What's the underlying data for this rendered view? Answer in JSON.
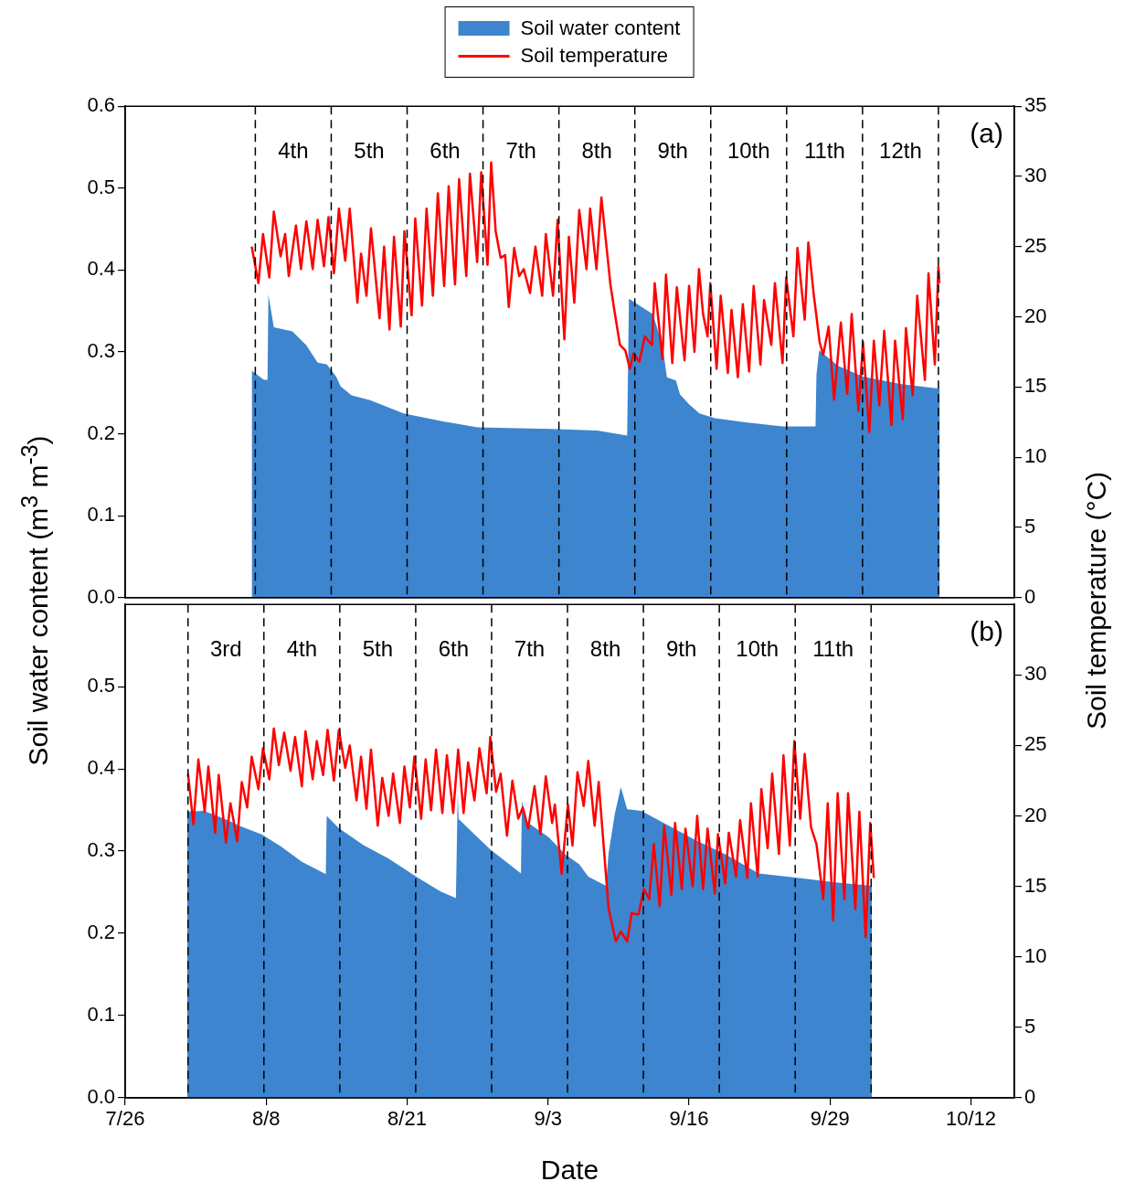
{
  "chart_data": [
    {
      "type": "area",
      "ylabel": "Soil water content (m$^{3}$ m$^{-3}$)",
      "y2label": "Soil temperature (°C)",
      "legend": "top",
      "tick_labels": "y",
      "xlim": [
        "--07-26",
        "--10-16"
      ],
      "ylim": [
        0,
        0.6
      ],
      "yticks": [
        {
          "value": 0,
          "label": "0.0"
        },
        {
          "value": 0.1,
          "label": "0.1"
        },
        {
          "value": 0.2,
          "label": "0.2"
        },
        {
          "value": 0.3,
          "label": "0.3"
        },
        {
          "value": 0.4,
          "label": "0.4"
        },
        {
          "value": 0.5,
          "label": "0.5"
        },
        {
          "value": 0.6,
          "label": "0.6"
        }
      ],
      "y2lim": [
        0,
        35
      ],
      "y2ticks": [
        0,
        5,
        10,
        15,
        20,
        25,
        30,
        35
      ],
      "series": [
        {
          "name": "Soil water content",
          "color": "#3d85cf",
          "x": [
            "--08-06T16:00",
            "--08-07T19:00",
            "--08-08T03:00",
            "--08-08T05:00",
            "--08-08T17:00",
            "--08-10T10:00",
            "--08-11T17:00",
            "--08-12T18:00",
            "--08-13T14:00",
            "--08-14T11:00",
            "--08-14T21:00",
            "--08-15T21:00",
            "--08-17T14:00",
            "--08-20T16:00",
            "--08-24T10:00",
            "--08-27T12:00",
            "--09-03T07:00",
            "--09-07T13:00",
            "--09-10T07:00",
            "--09-10T11:00",
            "--09-12T16:00",
            "--09-13T13:00",
            "--09-13T23:00",
            "--09-14T19:00",
            "--09-15T04:00",
            "--09-16T00:00",
            "--09-16T23:00",
            "--09-18T09:00",
            "--09-21T05:00",
            "--09-24T15:00",
            "--09-27T16:00",
            "--09-27T18:00",
            "--09-28T00:00",
            "--09-29T18:00",
            "--10-02T01:00",
            "--10-05T11:00",
            "--10-09T03:00"
          ],
          "values": [
            0.277,
            0.266,
            0.266,
            0.37,
            0.33,
            0.325,
            0.308,
            0.287,
            0.285,
            0.27,
            0.258,
            0.247,
            0.241,
            0.225,
            0.215,
            0.208,
            0.206,
            0.204,
            0.198,
            0.365,
            0.346,
            0.309,
            0.269,
            0.265,
            0.248,
            0.236,
            0.225,
            0.219,
            0.214,
            0.209,
            0.209,
            0.272,
            0.302,
            0.283,
            0.27,
            0.261,
            0.255
          ]
        },
        {
          "name": "Soil temperature",
          "type": "line",
          "axis": "y2",
          "color": "#ff0000",
          "x": [
            "--08-06T16:00",
            "--08-07T07:00",
            "--08-07T17:00",
            "--08-08T07:00",
            "--08-08T17:00",
            "--08-09T08:00",
            "--08-09T18:00",
            "--08-10T02:00",
            "--08-10T18:00",
            "--08-11T05:00",
            "--08-11T17:00",
            "--08-12T07:00",
            "--08-12T18:00",
            "--08-13T08:00",
            "--08-13T18:00",
            "--08-14T06:00",
            "--08-14T17:00",
            "--08-15T07:00",
            "--08-15T17:00",
            "--08-16T10:00",
            "--08-16T18:00",
            "--08-17T06:00",
            "--08-17T16:00",
            "--08-18T11:00",
            "--08-18T21:00",
            "--08-19T09:00",
            "--08-19T19:00",
            "--08-20T10:00",
            "--08-20T18:00",
            "--08-21T10:00",
            "--08-21T18:00",
            "--08-22T09:00",
            "--08-22T19:00",
            "--08-23T09:00",
            "--08-23T20:00",
            "--08-24T10:00",
            "--08-24T20:00",
            "--08-25T10:00",
            "--08-25T19:00",
            "--08-26T11:00",
            "--08-26T19:00",
            "--08-27T11:00",
            "--08-27T20:00",
            "--08-28T10:00",
            "--08-28T18:00",
            "--08-29T04:00",
            "--08-29T15:00",
            "--08-30T01:00",
            "--08-30T09:00",
            "--08-30T21:00",
            "--08-31T08:00",
            "--08-31T18:00",
            "--09-01T08:00",
            "--09-01T20:00",
            "--09-02T11:00",
            "--09-02T19:00",
            "--09-03T11:00",
            "--09-03T21:00",
            "--09-04T12:00",
            "--09-04T22:00",
            "--09-05T10:00",
            "--09-05T21:00",
            "--09-06T13:00",
            "--09-06T21:00",
            "--09-07T11:00",
            "--09-07T22:00",
            "--09-08T18:00",
            "--09-09T04:00",
            "--09-09T15:00",
            "--09-10T03:00",
            "--09-10T13:00",
            "--09-10T21:00",
            "--09-11T10:00",
            "--09-11T22:00",
            "--09-12T14:00",
            "--09-12T20:00",
            "--09-13T13:00",
            "--09-13T21:00",
            "--09-14T11:00",
            "--09-14T21:00",
            "--09-15T14:00",
            "--09-16T00:00",
            "--09-16T12:00",
            "--09-16T22:00",
            "--09-17T07:00",
            "--09-17T17:00",
            "--09-17T23:00",
            "--09-18T13:00",
            "--09-18T22:00",
            "--09-19T14:00",
            "--09-19T22:00",
            "--09-20T12:00",
            "--09-20T23:00",
            "--09-21T13:00",
            "--09-21T23:00",
            "--09-22T14:00",
            "--09-22T22:00",
            "--09-23T14:00",
            "--09-23T22:00",
            "--09-24T15:00",
            "--09-24T23:00",
            "--09-25T15:00",
            "--09-26T00:00",
            "--09-26T16:00",
            "--09-27T00:00",
            "--09-27T12:00",
            "--09-28T01:00",
            "--09-28T09:00",
            "--09-28T21:00",
            "--09-29T09:00",
            "--09-30T00:00",
            "--09-30T14:00",
            "--10-01T00:00",
            "--10-01T15:00",
            "--10-02T01:00",
            "--10-02T15:00",
            "--10-03T01:00",
            "--10-03T13:00",
            "--10-04T00:00",
            "--10-04T16:00",
            "--10-05T00:00",
            "--10-05T17:00",
            "--10-06T00:00",
            "--10-06T15:00",
            "--10-07T01:00",
            "--10-07T18:00",
            "--10-08T02:00",
            "--10-08T16:00",
            "--10-09T00:00",
            "--10-09T02:00"
          ],
          "values": [
            25.0,
            22.4,
            25.9,
            22.8,
            27.5,
            24.3,
            25.9,
            22.9,
            26.5,
            23.4,
            26.8,
            23.4,
            26.9,
            23.6,
            27.1,
            23.1,
            27.7,
            24.0,
            27.7,
            21.0,
            24.5,
            21.5,
            26.3,
            19.9,
            25.0,
            19.1,
            25.7,
            19.3,
            26.1,
            20.1,
            27.0,
            20.8,
            27.7,
            21.5,
            28.8,
            22.2,
            29.3,
            22.3,
            29.8,
            22.9,
            30.2,
            23.9,
            30.3,
            23.7,
            31.0,
            26.1,
            24.2,
            24.4,
            20.7,
            24.9,
            22.9,
            23.4,
            21.7,
            25.0,
            21.5,
            25.9,
            21.5,
            26.9,
            18.4,
            25.7,
            21.0,
            27.6,
            23.4,
            27.7,
            23.4,
            28.5,
            22.3,
            20.2,
            18.0,
            17.6,
            16.3,
            17.4,
            16.8,
            18.6,
            18.0,
            22.4,
            17.0,
            23.0,
            16.7,
            22.1,
            16.9,
            22.2,
            17.5,
            23.4,
            20.2,
            18.6,
            22.4,
            16.3,
            21.5,
            16.0,
            20.5,
            15.7,
            20.9,
            16.1,
            22.2,
            16.6,
            21.2,
            18.0,
            22.4,
            16.7,
            22.8,
            18.6,
            24.9,
            19.8,
            25.3,
            21.6,
            18.2,
            17.3,
            19.3,
            14.1,
            19.6,
            14.5,
            20.2,
            13.3,
            18.2,
            11.8,
            18.3,
            13.7,
            19.0,
            12.3,
            18.3,
            12.7,
            19.2,
            14.4,
            21.5,
            15.5,
            23.1,
            16.6,
            23.6,
            22.4
          ]
        }
      ],
      "ref_lines": [
        {
          "axis": "x",
          "value": "--08-07",
          "line_style": "dashed"
        },
        {
          "axis": "x",
          "value": "--08-14",
          "line_style": "dashed"
        },
        {
          "axis": "x",
          "value": "--08-21",
          "line_style": "dashed"
        },
        {
          "axis": "x",
          "value": "--08-28",
          "line_style": "dashed"
        },
        {
          "axis": "x",
          "value": "--09-04",
          "line_style": "dashed"
        },
        {
          "axis": "x",
          "value": "--09-11",
          "line_style": "dashed"
        },
        {
          "axis": "x",
          "value": "--09-18",
          "line_style": "dashed"
        },
        {
          "axis": "x",
          "value": "--09-25",
          "line_style": "dashed"
        },
        {
          "axis": "x",
          "value": "--10-02",
          "line_style": "dashed"
        },
        {
          "axis": "x",
          "value": "--10-09",
          "line_style": "dashed"
        }
      ],
      "annotations": [
        "(a)",
        "4th",
        "5th",
        "6th",
        "7th",
        "8th",
        "9th",
        "10th",
        "11th",
        "12th"
      ]
    },
    {
      "type": "area",
      "xlabel": "Date",
      "xlim": [
        "--07-26",
        "--10-16"
      ],
      "xticks": [
        {
          "value": "--07-26",
          "label": "7/26"
        },
        {
          "value": "--08-08",
          "label": "8/8"
        },
        {
          "value": "--08-21",
          "label": "8/21"
        },
        {
          "value": "--09-03",
          "label": "9/3"
        },
        {
          "value": "--09-16",
          "label": "9/16"
        },
        {
          "value": "--09-29",
          "label": "9/29"
        },
        {
          "value": "--10-12",
          "label": "10/12"
        }
      ],
      "ylim": [
        0,
        0.6
      ],
      "yticks": [
        {
          "value": 0,
          "label": "0.0"
        },
        {
          "value": 0.1,
          "label": "0.1"
        },
        {
          "value": 0.2,
          "label": "0.2"
        },
        {
          "value": 0.3,
          "label": "0.3"
        },
        {
          "value": 0.4,
          "label": "0.4"
        },
        {
          "value": 0.5,
          "label": "0.5"
        }
      ],
      "y2lim": [
        0,
        35
      ],
      "y2ticks": [
        0,
        5,
        10,
        15,
        20,
        25,
        30
      ],
      "series": [
        {
          "color": "#3d85cf",
          "x": [
            "--07-31T17:00",
            "--08-02T06:00",
            "--08-04T05:00",
            "--08-05T16:00",
            "--08-07T15:00",
            "--08-09T08:00",
            "--08-11T07:00",
            "--08-13T12:00",
            "--08-13T14:00",
            "--08-14T17:00",
            "--08-17T00:00",
            "--08-19T07:00",
            "--08-21T20:00",
            "--08-24T02:00",
            "--08-25T12:00",
            "--08-25T16:00",
            "--08-25T18:00",
            "--08-28T16:00",
            "--08-31T12:00",
            "--08-31T14:00",
            "--09-01T02:00",
            "--09-03T01:00",
            "--09-04T14:00",
            "--09-05T21:00",
            "--09-06T17:00",
            "--09-08T08:00",
            "--09-08T14:00",
            "--09-09T04:00",
            "--09-09T17:00",
            "--09-10T07:00",
            "--09-11T14:00",
            "--09-13T13:00",
            "--09-16T16:00",
            "--09-19T12:00",
            "--09-22T10:00",
            "--09-25T19:00",
            "--09-29T11:00",
            "--10-02T21:00"
          ],
          "values": [
            0.348,
            0.349,
            0.339,
            0.33,
            0.32,
            0.306,
            0.287,
            0.272,
            0.343,
            0.328,
            0.307,
            0.291,
            0.269,
            0.251,
            0.243,
            0.37,
            0.339,
            0.302,
            0.273,
            0.361,
            0.335,
            0.317,
            0.296,
            0.284,
            0.269,
            0.258,
            0.298,
            0.346,
            0.378,
            0.351,
            0.349,
            0.335,
            0.313,
            0.295,
            0.273,
            0.268,
            0.262,
            0.258
          ]
        },
        {
          "type": "line",
          "axis": "y2",
          "color": "#ff0000",
          "x": [
            "--07-31T19:00",
            "--08-01T07:00",
            "--08-01T18:00",
            "--08-02T08:00",
            "--08-02T16:00",
            "--08-03T07:00",
            "--08-03T15:00",
            "--08-04T07:00",
            "--08-04T17:00",
            "--08-05T08:00",
            "--08-05T18:00",
            "--08-06T06:00",
            "--08-06T16:00",
            "--08-07T07:00",
            "--08-07T17:00",
            "--08-08T07:00",
            "--08-08T17:00",
            "--08-09T04:00",
            "--08-09T16:00",
            "--08-10T06:00",
            "--08-10T16:00",
            "--08-11T07:00",
            "--08-11T15:00",
            "--08-12T07:00",
            "--08-12T16:00",
            "--08-13T06:00",
            "--08-13T16:00",
            "--08-14T06:00",
            "--08-14T17:00",
            "--08-15T07:00",
            "--08-15T17:00",
            "--08-16T08:00",
            "--08-16T18:00",
            "--08-17T06:00",
            "--08-17T16:00",
            "--08-18T07:00",
            "--08-18T17:00",
            "--08-19T07:00",
            "--08-19T17:00",
            "--08-20T08:00",
            "--08-20T18:00",
            "--08-21T06:00",
            "--08-21T16:00",
            "--08-22T07:00",
            "--08-22T17:00",
            "--08-23T05:00",
            "--08-23T16:00",
            "--08-24T06:00",
            "--08-24T16:00",
            "--08-25T06:00",
            "--08-25T17:00",
            "--08-26T05:00",
            "--08-26T15:00",
            "--08-27T05:00",
            "--08-27T16:00",
            "--08-28T08:00",
            "--08-28T16:00",
            "--08-29T05:00",
            "--08-29T15:00",
            "--08-30T05:00",
            "--08-30T17:00",
            "--08-31T06:00",
            "--08-31T16:00",
            "--09-01T04:00",
            "--09-01T18:00",
            "--09-02T07:00",
            "--09-02T19:00",
            "--09-03T09:00",
            "--09-03T15:00",
            "--09-04T06:00",
            "--09-04T20:00",
            "--09-05T06:00",
            "--09-05T17:00",
            "--09-06T07:00",
            "--09-06T17:00",
            "--09-07T07:00",
            "--09-07T16:00",
            "--09-08T14:00",
            "--09-09T06:00",
            "--09-09T17:00",
            "--09-10T07:00",
            "--09-10T17:00",
            "--09-11T08:00",
            "--09-11T20:00",
            "--09-12T08:00",
            "--09-12T18:00",
            "--09-13T07:00",
            "--09-13T17:00",
            "--09-14T09:00",
            "--09-14T17:00",
            "--09-15T08:00",
            "--09-15T16:00",
            "--09-16T08:00",
            "--09-16T18:00",
            "--09-17T07:00",
            "--09-17T17:00",
            "--09-18T09:00",
            "--09-18T16:00",
            "--09-19T08:00",
            "--09-19T16:00",
            "--09-20T08:00",
            "--09-20T17:00",
            "--09-21T09:00",
            "--09-21T17:00",
            "--09-22T08:00",
            "--09-22T16:00",
            "--09-23T06:00",
            "--09-23T16:00",
            "--09-24T07:00",
            "--09-24T17:00",
            "--09-25T07:00",
            "--09-25T17:00",
            "--09-26T06:00",
            "--09-26T16:00",
            "--09-27T06:00",
            "--09-27T18:00",
            "--09-28T09:00",
            "--09-28T19:00",
            "--09-29T07:00",
            "--09-29T17:00",
            "--09-30T08:00",
            "--09-30T16:00",
            "--10-01T08:00",
            "--10-01T17:00",
            "--10-02T07:00",
            "--10-02T17:00",
            "--10-03T01:00"
          ],
          "values": [
            23.0,
            19.4,
            24.0,
            20.3,
            23.5,
            18.8,
            22.9,
            18.1,
            20.9,
            18.2,
            22.4,
            20.6,
            24.2,
            21.9,
            24.8,
            22.6,
            26.2,
            23.6,
            25.9,
            23.2,
            25.6,
            22.1,
            26.0,
            22.6,
            25.3,
            22.9,
            26.1,
            22.5,
            26.1,
            23.4,
            25.0,
            21.1,
            24.2,
            20.5,
            24.7,
            19.3,
            22.7,
            20.0,
            23.0,
            19.5,
            23.5,
            20.6,
            24.2,
            19.8,
            24.0,
            20.4,
            24.7,
            20.2,
            24.3,
            20.2,
            24.7,
            20.2,
            23.8,
            21.1,
            24.8,
            21.6,
            25.6,
            21.7,
            23.0,
            18.6,
            22.5,
            19.8,
            20.6,
            19.1,
            22.1,
            18.7,
            22.8,
            19.5,
            20.8,
            15.9,
            20.8,
            17.9,
            23.1,
            20.7,
            23.9,
            19.3,
            22.4,
            13.4,
            11.1,
            11.8,
            11.1,
            13.1,
            13.0,
            14.8,
            14.1,
            18.0,
            13.6,
            19.3,
            14.4,
            19.5,
            14.8,
            19.1,
            15.0,
            20.0,
            14.8,
            19.1,
            14.5,
            18.7,
            15.2,
            18.8,
            15.7,
            19.7,
            15.6,
            20.9,
            15.7,
            21.9,
            17.7,
            23.0,
            17.3,
            24.3,
            17.9,
            25.3,
            19.8,
            24.4,
            19.2,
            18.0,
            14.1,
            20.9,
            12.6,
            21.6,
            14.1,
            21.6,
            13.4,
            20.3,
            11.4,
            19.5,
            15.6
          ]
        }
      ],
      "ref_lines": [
        {
          "axis": "x",
          "value": "--07-31T19:00",
          "line_style": "dashed"
        },
        {
          "axis": "x",
          "value": "--08-07T19:00",
          "line_style": "dashed"
        },
        {
          "axis": "x",
          "value": "--08-14T19:00",
          "line_style": "dashed"
        },
        {
          "axis": "x",
          "value": "--08-21T19:00",
          "line_style": "dashed"
        },
        {
          "axis": "x",
          "value": "--08-28T19:00",
          "line_style": "dashed"
        },
        {
          "axis": "x",
          "value": "--09-04T19:00",
          "line_style": "dashed"
        },
        {
          "axis": "x",
          "value": "--09-11T19:00",
          "line_style": "dashed"
        },
        {
          "axis": "x",
          "value": "--09-18T19:00",
          "line_style": "dashed"
        },
        {
          "axis": "x",
          "value": "--09-25T19:00",
          "line_style": "dashed"
        },
        {
          "axis": "x",
          "value": "--10-02T19:00",
          "line_style": "dashed"
        }
      ],
      "annotations": [
        "(b)",
        "3rd",
        "4th",
        "5th",
        "6th",
        "7th",
        "8th",
        "9th",
        "10th",
        "11th"
      ]
    }
  ]
}
